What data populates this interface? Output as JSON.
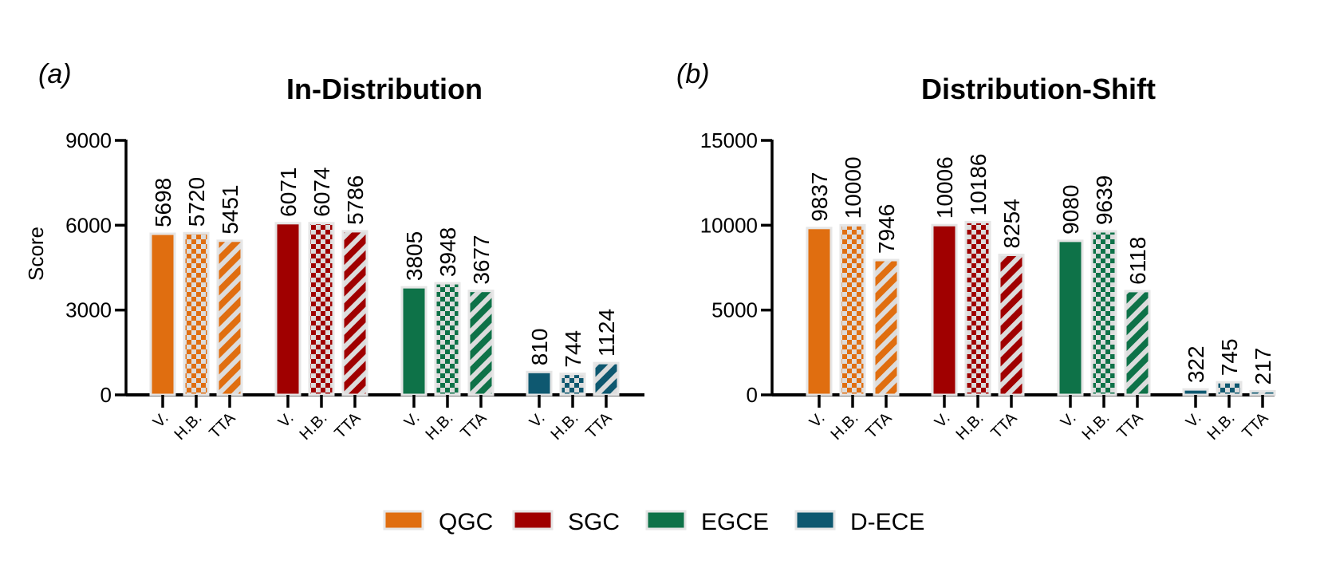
{
  "legend": [
    {
      "name": "QGC",
      "color": "#E06E10"
    },
    {
      "name": "SGC",
      "color": "#A00000"
    },
    {
      "name": "EGCE",
      "color": "#0E7248"
    },
    {
      "name": "D-ECE",
      "color": "#0E5870"
    }
  ],
  "variants": [
    "V.",
    "H.B.",
    "TTA"
  ],
  "chart_data": [
    {
      "type": "bar",
      "panel": "(a)",
      "title": "In-Distribution",
      "ylabel": "Score",
      "ylim": [
        0,
        9000
      ],
      "yticks": [
        0,
        3000,
        6000,
        9000
      ],
      "groups": [
        "QGC",
        "SGC",
        "EGCE",
        "D-ECE"
      ],
      "categories": [
        "V.",
        "H.B.",
        "TTA"
      ],
      "series": [
        {
          "name": "QGC",
          "values": [
            5698,
            5720,
            5451
          ]
        },
        {
          "name": "SGC",
          "values": [
            6071,
            6074,
            5786
          ]
        },
        {
          "name": "EGCE",
          "values": [
            3805,
            3948,
            3677
          ]
        },
        {
          "name": "D-ECE",
          "values": [
            810,
            744,
            1124
          ]
        }
      ]
    },
    {
      "type": "bar",
      "panel": "(b)",
      "title": "Distribution-Shift",
      "ylabel": "",
      "ylim": [
        0,
        15000
      ],
      "yticks": [
        0,
        5000,
        10000,
        15000
      ],
      "groups": [
        "QGC",
        "SGC",
        "EGCE",
        "D-ECE"
      ],
      "categories": [
        "V.",
        "H.B.",
        "TTA"
      ],
      "series": [
        {
          "name": "QGC",
          "values": [
            9837,
            10000,
            7946
          ]
        },
        {
          "name": "SGC",
          "values": [
            10006,
            10186,
            8254
          ]
        },
        {
          "name": "EGCE",
          "values": [
            9080,
            9639,
            6118
          ]
        },
        {
          "name": "D-ECE",
          "values": [
            322,
            745,
            217
          ]
        }
      ]
    }
  ]
}
